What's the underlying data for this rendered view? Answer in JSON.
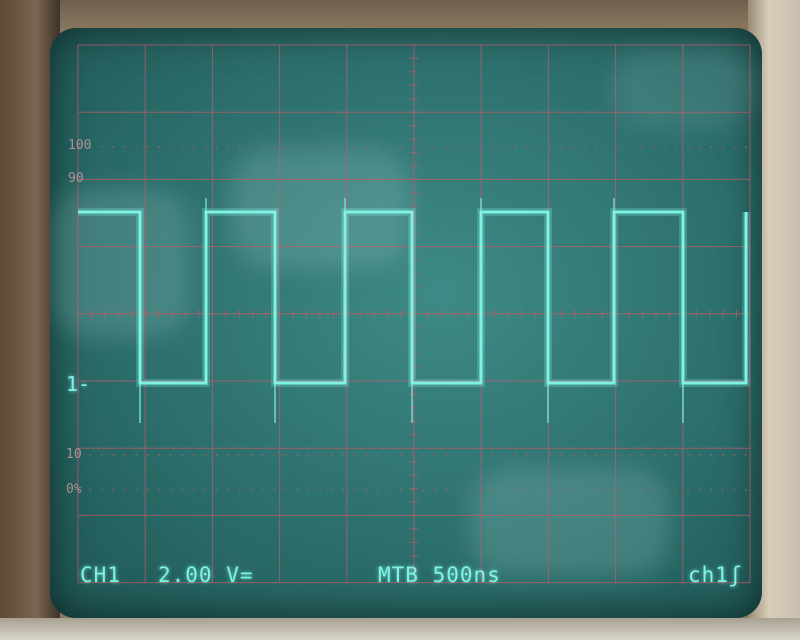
{
  "graticule": {
    "scale_labels": [
      "100",
      "90",
      "10",
      "0%"
    ]
  },
  "channel_marker": "1-",
  "readout": {
    "channel": "CH1",
    "volts_div": "2.00 V=",
    "timebase": "MTB 500ns",
    "trigger": "ch1ʃ"
  },
  "colors": {
    "trace": "#7ff3e3",
    "graticule": "#c85a6a",
    "screen": "#2c6f6c"
  }
}
